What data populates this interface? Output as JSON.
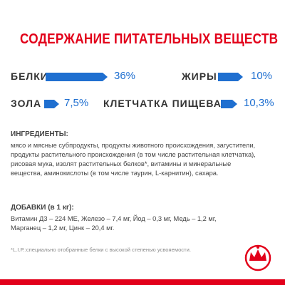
{
  "title": "СОДЕРЖАНИЕ ПИТАТЕЛЬНЫХ ВЕЩЕСТВ",
  "nutrients": [
    {
      "label": "БЕЛКИ",
      "value": "36%"
    },
    {
      "label": "ЖИРЫ",
      "value": "10%"
    },
    {
      "label": "ЗОЛА",
      "value": "7,5%"
    },
    {
      "label": "КЛЕТЧАТКА ПИЩЕВАЯ",
      "value": "10,3%"
    }
  ],
  "ingredients": {
    "heading": "ИНГРЕДИЕНТЫ:",
    "lines": [
      "мясо и мясные субпродукты, продукты животного происхождения, загустители,",
      "продукты растительного происхождения (в том числе растительная клетчатка),",
      "рисовая мука, изолят растительных белков*, витамины и минеральные",
      "вещества, аминокислоты (в том числе таурин, L-карнитин), сахара."
    ]
  },
  "additives": {
    "heading": "ДОБАВКИ (в 1 кг):",
    "lines": [
      "Витамин Д3 – 224 МЕ, Железо – 7,4 мг, Йод – 0,3 мг, Медь – 1,2 мг,",
      "Марганец – 1,2 мг, Цинк – 20,4 мг."
    ]
  },
  "footnote": "*L.I.P.:специально отобранные белки с высокой степенью усвояемости."
}
